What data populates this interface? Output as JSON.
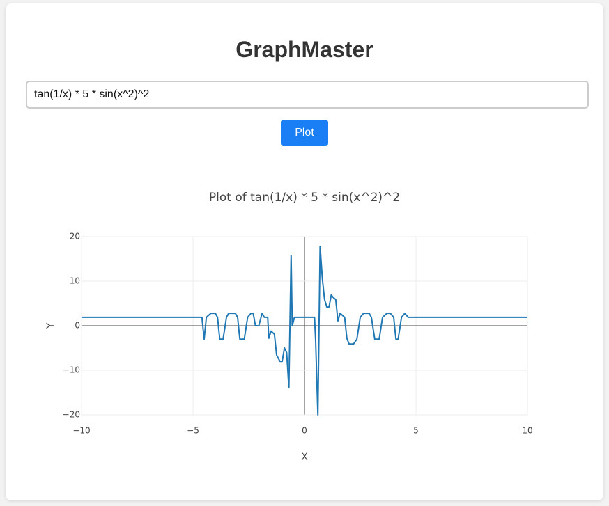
{
  "header": {
    "title": "GraphMaster"
  },
  "form": {
    "input_value": "tan(1/x) * 5 * sin(x^2)^2",
    "button": "Plot"
  },
  "chart_data": {
    "type": "line",
    "title": "Plot of tan(1/x) * 5 * sin(x^2)^2",
    "x_label": "X",
    "y_label": "Y",
    "color": "#1f77b4",
    "grid": true,
    "zeroline": true,
    "x": [
      -10,
      -4.6,
      -4.5,
      -4.4,
      -4.2,
      -4.0,
      -3.9,
      -3.8,
      -3.65,
      -3.5,
      -3.4,
      -3.1,
      -3.0,
      -2.9,
      -2.7,
      -2.55,
      -2.4,
      -2.3,
      -2.2,
      -2.05,
      -1.9,
      -1.8,
      -1.65,
      -1.6,
      -1.5,
      -1.35,
      -1.25,
      -1.1,
      -1.0,
      -0.9,
      -0.8,
      -0.7,
      -0.6,
      -0.55,
      -0.45,
      0.45,
      0.5,
      0.6,
      0.7,
      0.8,
      0.9,
      1.0,
      1.1,
      1.2,
      1.3,
      1.4,
      1.5,
      1.6,
      1.8,
      1.9,
      2.0,
      2.2,
      2.35,
      2.5,
      2.65,
      2.9,
      3.0,
      3.15,
      3.35,
      3.5,
      3.7,
      3.85,
      4.0,
      4.1,
      4.2,
      4.35,
      4.5,
      4.65,
      10
    ],
    "values": [
      1.9,
      1.9,
      -3,
      1.9,
      2.8,
      2.8,
      1.9,
      -3,
      -3,
      1.9,
      2.8,
      2.8,
      1.9,
      -3,
      -3,
      1.9,
      2.8,
      2.8,
      0,
      0,
      2.8,
      1.9,
      1.9,
      -2.8,
      -1.2,
      -1.9,
      -6.6,
      -8,
      -8,
      -5,
      -6,
      -13.9,
      15.8,
      0,
      1.9,
      1.9,
      -3.4,
      -20,
      17.8,
      10.6,
      5.9,
      4.2,
      4.2,
      6.9,
      6.3,
      5.9,
      1.1,
      2.8,
      1.9,
      -2.8,
      -4.1,
      -4.1,
      -3,
      1.9,
      2.8,
      2.8,
      1.9,
      -3,
      -3,
      1.9,
      2.8,
      2.8,
      1.9,
      -3,
      -3,
      1.9,
      2.8,
      1.9,
      1.9
    ],
    "xlim": [
      -10,
      10
    ],
    "ylim": [
      -20,
      20
    ],
    "xticks": [
      {
        "value": -10,
        "label": "−10"
      },
      {
        "value": -5,
        "label": "−5"
      },
      0,
      5,
      10
    ],
    "yticks": [
      {
        "value": -20,
        "label": "−20"
      },
      {
        "value": -10,
        "label": "−10"
      },
      0,
      10,
      20
    ]
  }
}
